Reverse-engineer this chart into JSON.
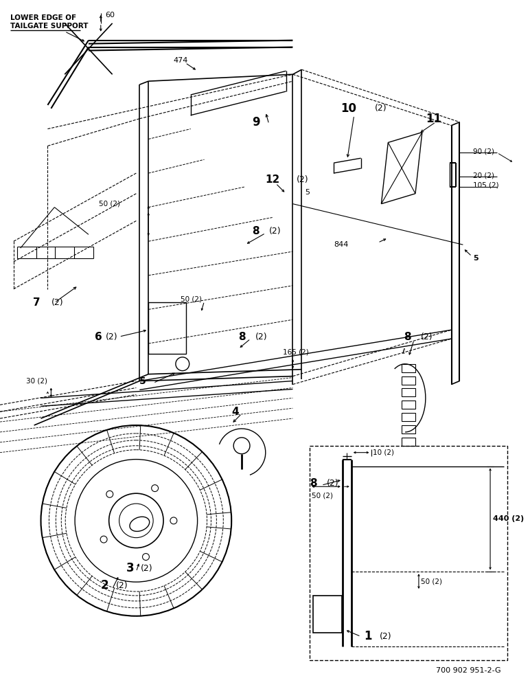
{
  "bg_color": "#ffffff",
  "line_color": "#000000",
  "fig_width": 7.72,
  "fig_height": 10.0,
  "dpi": 100,
  "watermark": "700 902 951-2-G",
  "labels": {
    "header_line1": "LOWER EDGE OF",
    "header_line2": "TAILGATE SUPPORT",
    "item1": "1",
    "item1s": "(2)",
    "item2": "2",
    "item2s": "(2)",
    "item3": "3",
    "item3s": "(2)",
    "item4": "4",
    "item5": "5",
    "item6": "6",
    "item6s": "(2)",
    "item7": "7",
    "item7s": "(2)",
    "item8": "8",
    "item8s": "(2)",
    "item9": "9",
    "item10": "10",
    "item10s": "(2)",
    "item11": "11",
    "item12": "12",
    "item12s": "(2)",
    "dim60": "60",
    "dim474": "474",
    "dim844": "844",
    "dim165": "165 (2)",
    "dim30": "30 (2)",
    "dim50": "50 (2)",
    "dim10": "10 (2)",
    "dim440": "440 (2)",
    "dim90": "90 (2)",
    "dim20": "20 (2)",
    "dim105": "105 (2)",
    "dim5": "5"
  }
}
